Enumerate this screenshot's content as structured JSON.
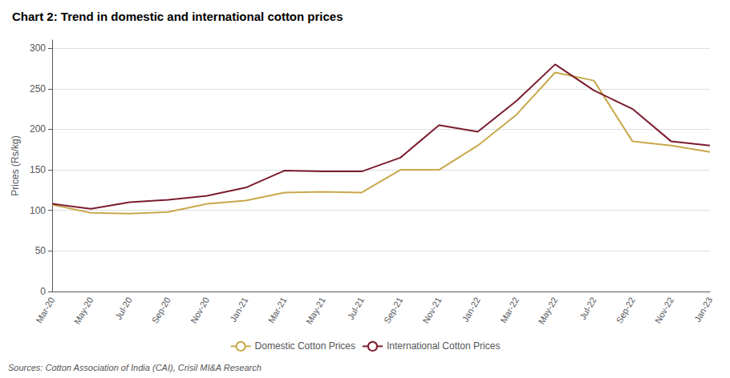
{
  "chart_data": {
    "type": "line",
    "title": "Chart 2: Trend in domestic and international cotton prices",
    "ylabel": "Prices (Rs/kg)",
    "annotations": [
      "Sources: Cotton Association of India (CAI), Crisil MI&A Research"
    ],
    "categories": [
      "Mar-20",
      "May-20",
      "Jul-20",
      "Sep-20",
      "Nov-20",
      "Jan-21",
      "Mar-21",
      "May-21",
      "Jul-21",
      "Sep-21",
      "Nov-21",
      "Jan-22",
      "Mar-22",
      "May-22",
      "Jul-22",
      "Sep-22",
      "Nov-22",
      "Jan-23"
    ],
    "series": [
      {
        "name": "Domestic Cotton Prices",
        "color": "#C8A84B",
        "values": [
          107,
          97,
          96,
          98,
          108,
          112,
          122,
          123,
          122,
          150,
          150,
          180,
          218,
          270,
          260,
          185,
          180,
          172
        ]
      },
      {
        "name": "International Cotton Prices",
        "color": "#7B1C2E",
        "values": [
          108,
          102,
          110,
          113,
          118,
          128,
          149,
          148,
          148,
          165,
          205,
          197,
          235,
          280,
          248,
          225,
          185,
          180
        ]
      }
    ],
    "ylim": [
      0,
      310
    ],
    "yticks": [
      0,
      50,
      100,
      150,
      200,
      250,
      300
    ],
    "grid": true,
    "legend": "bottom"
  }
}
